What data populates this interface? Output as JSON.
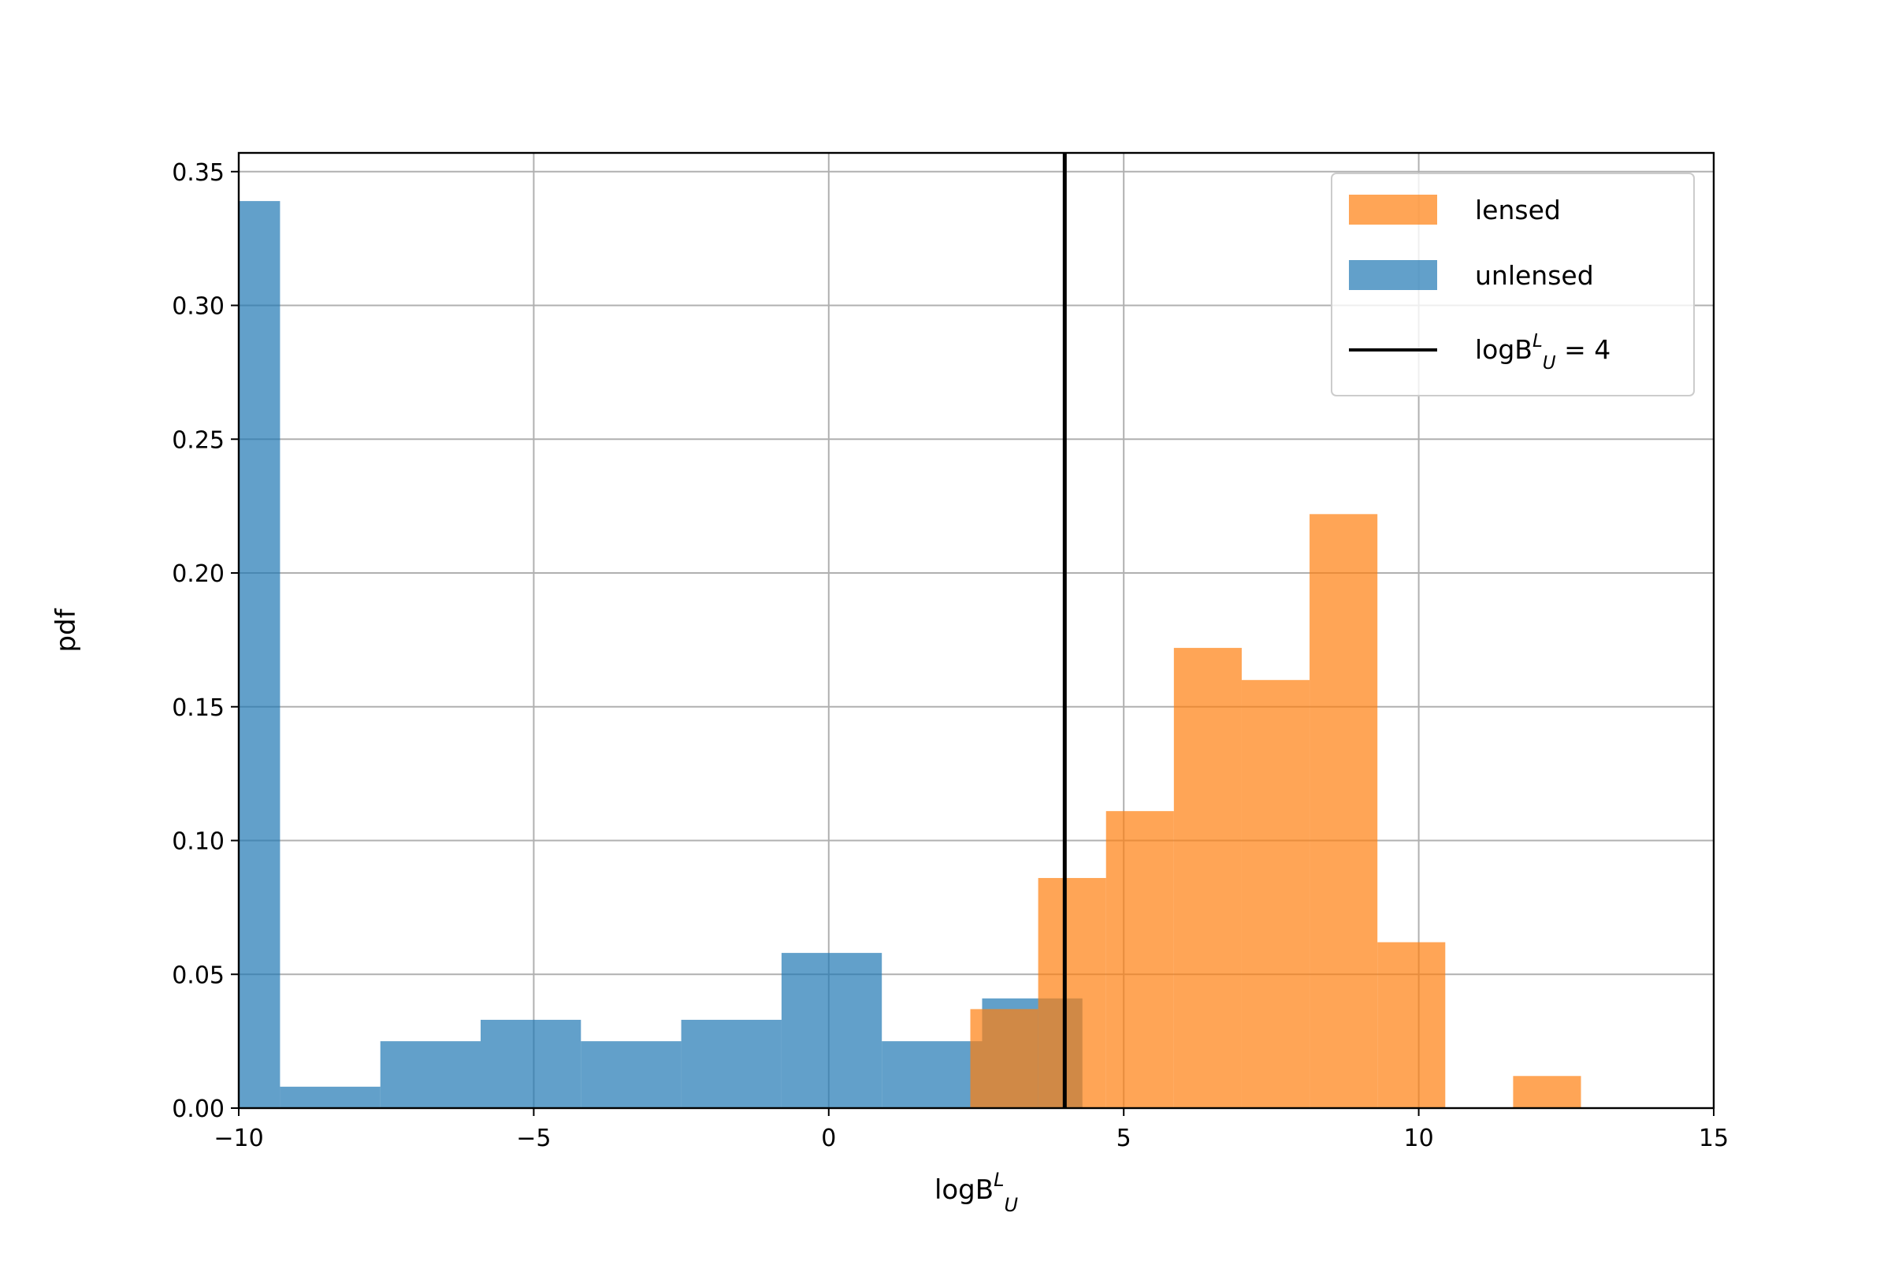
{
  "chart_data": {
    "type": "bar",
    "subtype": "histogram",
    "xlabel": "logB",
    "xlabel_sup": "L",
    "xlabel_sub": "U",
    "ylabel": "pdf",
    "xlim": [
      -10,
      15
    ],
    "ylim": [
      0,
      0.357
    ],
    "x_ticks": [
      -10,
      -5,
      0,
      5,
      10,
      15
    ],
    "x_tick_labels": [
      "−10",
      "−5",
      "0",
      "5",
      "10",
      "15"
    ],
    "y_ticks": [
      0,
      0.05,
      0.1,
      0.15,
      0.2,
      0.25,
      0.3,
      0.35
    ],
    "y_tick_labels": [
      "0.00",
      "0.05",
      "0.10",
      "0.15",
      "0.20",
      "0.25",
      "0.30",
      "0.35"
    ],
    "grid": true,
    "legend_position": "top-right",
    "series": [
      {
        "name": "unlensed",
        "color": "#1f77b4",
        "opacity": 0.7,
        "bin_edges": [
          -10.0,
          -9.3,
          -7.6,
          -5.9,
          -4.2,
          -2.5,
          -0.8,
          0.9,
          2.6,
          4.3
        ],
        "values": [
          0.339,
          0.008,
          0.025,
          0.033,
          0.025,
          0.033,
          0.058,
          0.025,
          0.041
        ]
      },
      {
        "name": "lensed",
        "color": "#ff7f0e",
        "opacity": 0.7,
        "bin_edges": [
          2.4,
          3.55,
          4.7,
          5.85,
          7.0,
          8.15,
          9.3,
          10.45,
          11.6,
          12.75
        ],
        "values": [
          0.037,
          0.086,
          0.111,
          0.172,
          0.16,
          0.222,
          0.062,
          0.0,
          0.012
        ]
      }
    ],
    "reference_line": {
      "x": 4,
      "color": "#000000",
      "label_prefix": "logB",
      "label_sup": "L",
      "label_sub": "U",
      "label_suffix": " = 4"
    }
  }
}
